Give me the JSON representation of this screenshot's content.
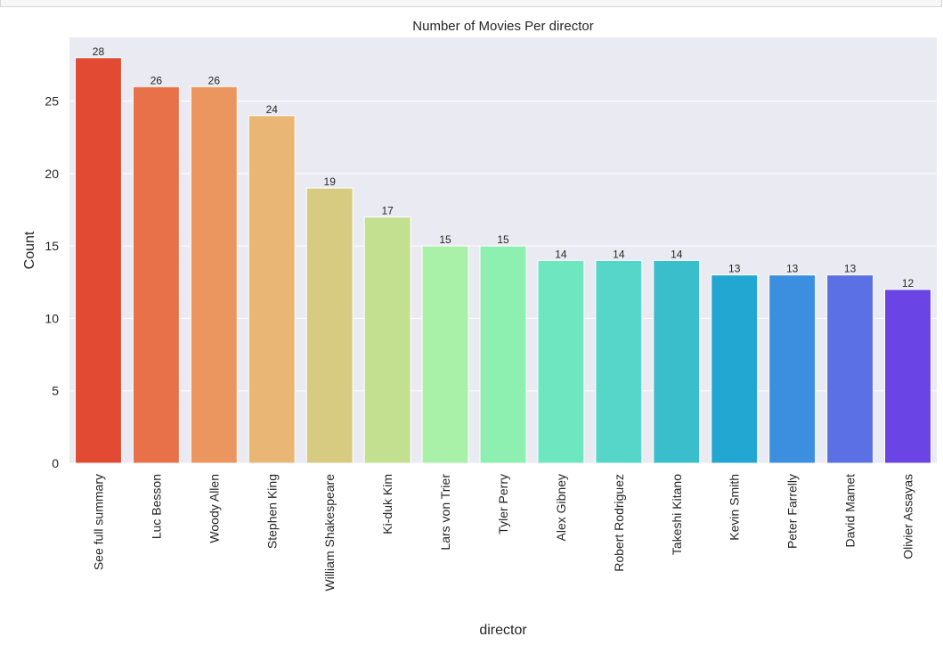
{
  "chart_data": {
    "type": "bar",
    "title": "Number of Movies Per director",
    "xlabel": "director",
    "ylabel": "Count",
    "categories": [
      "See full summary",
      "Luc Besson",
      "Woody Allen",
      "Stephen King",
      "William Shakespeare",
      "Ki-duk Kim",
      "Lars von Trier",
      "Tyler Perry",
      "Alex Gibney",
      "Robert Rodriguez",
      "Takeshi Kitano",
      "Kevin Smith",
      "Peter Farrelly",
      "David Mamet",
      "Olivier Assayas"
    ],
    "values": [
      28,
      26,
      26,
      24,
      19,
      17,
      15,
      15,
      14,
      14,
      14,
      13,
      13,
      13,
      12
    ],
    "data_labels": [
      "28",
      "26",
      "26",
      "24",
      "19",
      "17",
      "15",
      "15",
      "14",
      "14",
      "14",
      "13",
      "13",
      "13",
      "12"
    ],
    "colors": [
      "#e34a33",
      "#e8714a",
      "#ea965e",
      "#eab676",
      "#d6cb80",
      "#c2e090",
      "#a9f0a8",
      "#8df0b0",
      "#6ee6c0",
      "#55d6c8",
      "#3bbecc",
      "#22a6d2",
      "#3c8ede",
      "#5a70e4",
      "#6a44e4"
    ],
    "y_ticks": [
      "0",
      "5",
      "10",
      "15",
      "20",
      "25"
    ],
    "ylim": [
      0,
      29.4
    ],
    "grid": true,
    "legend": "none"
  }
}
